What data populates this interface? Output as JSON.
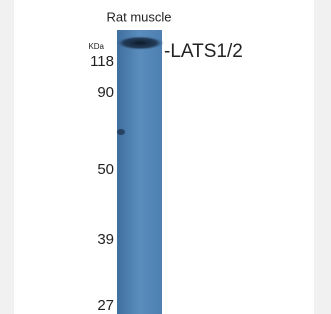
{
  "lane_label": "Rat muscle",
  "unit_label": "KDa",
  "markers": [
    118,
    90,
    50,
    39,
    27
  ],
  "band_label": "-LATS1/2"
}
